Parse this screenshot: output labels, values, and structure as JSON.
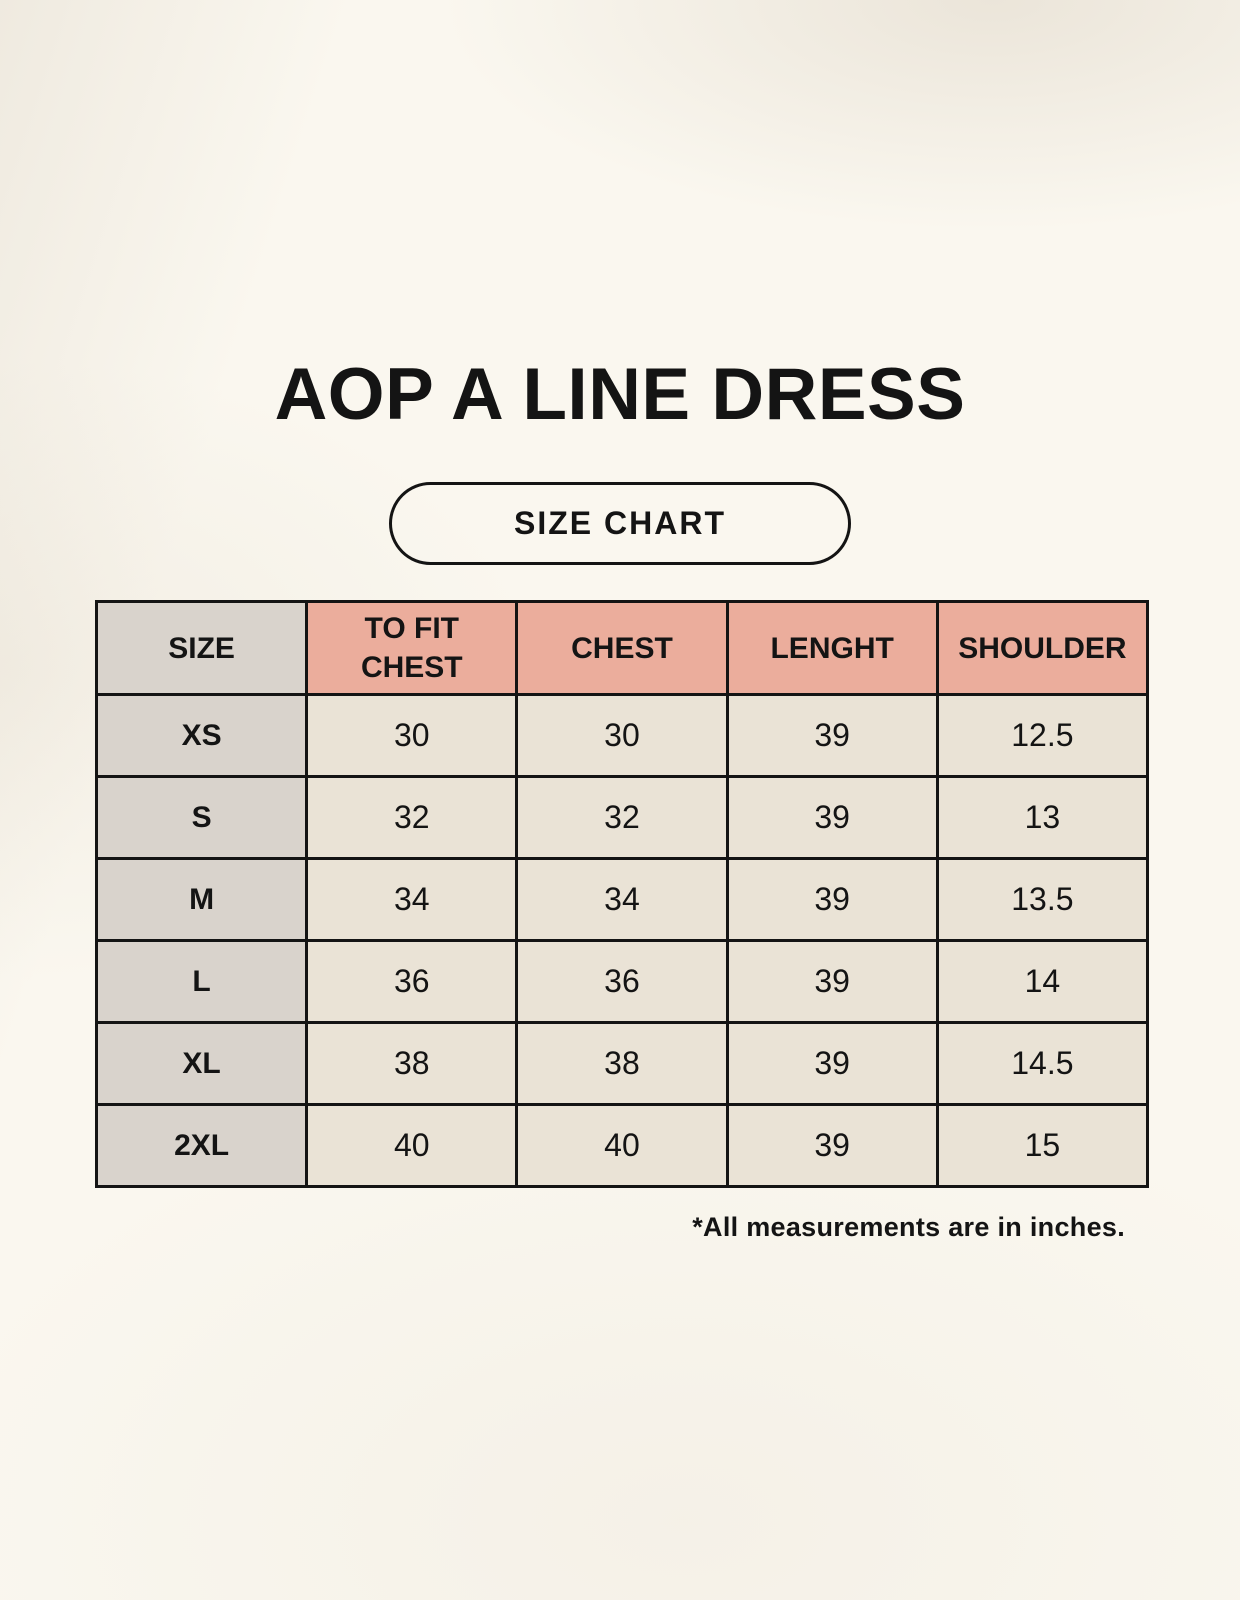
{
  "header": {
    "title": "AOP A LINE DRESS",
    "size_chart_label": "SIZE CHART"
  },
  "size_table": {
    "columns": [
      "SIZE",
      "TO FIT CHEST",
      "CHEST",
      "LENGHT",
      "SHOULDER"
    ],
    "rows": [
      {
        "size": "XS",
        "to_fit_chest": "30",
        "chest": "30",
        "length": "39",
        "shoulder": "12.5"
      },
      {
        "size": "S",
        "to_fit_chest": "32",
        "chest": "32",
        "length": "39",
        "shoulder": "13"
      },
      {
        "size": "M",
        "to_fit_chest": "34",
        "chest": "34",
        "length": "39",
        "shoulder": "13.5"
      },
      {
        "size": "L",
        "to_fit_chest": "36",
        "chest": "36",
        "length": "39",
        "shoulder": "14"
      },
      {
        "size": "XL",
        "to_fit_chest": "38",
        "chest": "38",
        "length": "39",
        "shoulder": "14.5"
      },
      {
        "size": "2XL",
        "to_fit_chest": "40",
        "chest": "40",
        "length": "39",
        "shoulder": "15"
      }
    ],
    "footnote": "*All measurements are in inches."
  },
  "colors": {
    "background": "#FAF7EF",
    "header_pink": "#EBAD9C",
    "size_column_gray": "#D9D3CC",
    "cell_cream": "#EAE3D6",
    "border": "#141414",
    "text": "#141414"
  }
}
